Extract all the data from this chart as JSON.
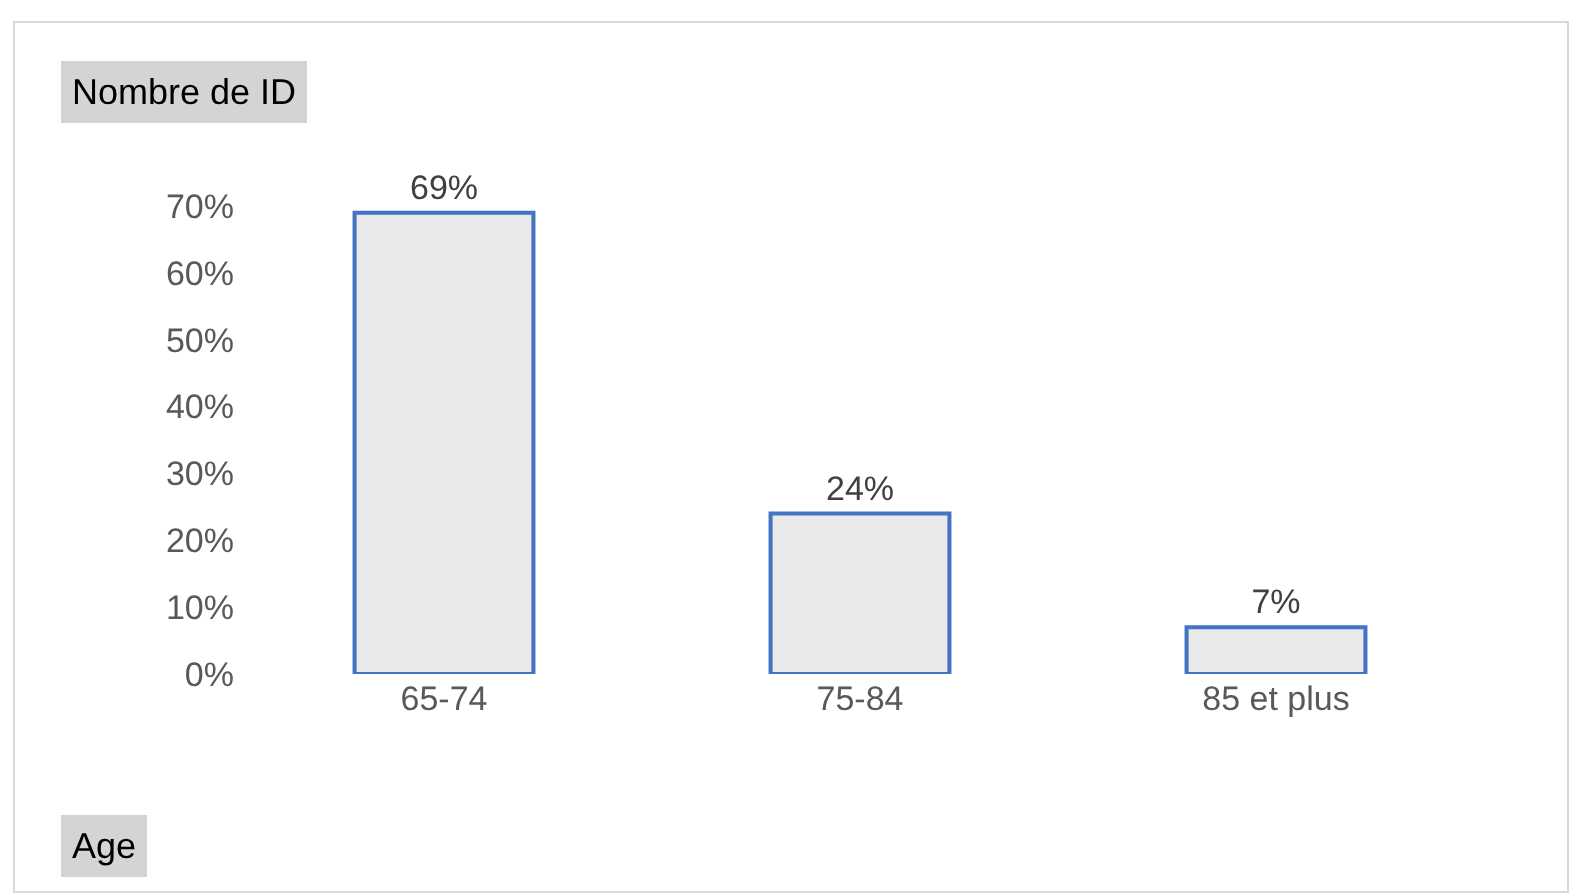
{
  "chart_data": {
    "type": "bar",
    "ylabel": "Nombre de ID",
    "xlabel": "Age",
    "categories": [
      "65-74",
      "75-84",
      "85 et plus"
    ],
    "values": [
      69,
      24,
      7
    ],
    "color": "#e9e9e9",
    "value_labels": [
      "69%",
      "24%",
      "7%"
    ],
    "ylim": [
      0,
      70
    ],
    "yticks": [
      {
        "value": 0,
        "label": "0%"
      },
      {
        "value": 10,
        "label": "10%"
      },
      {
        "value": 20,
        "label": "20%"
      },
      {
        "value": 30,
        "label": "30%"
      },
      {
        "value": 40,
        "label": "40%"
      },
      {
        "value": 50,
        "label": "50%"
      },
      {
        "value": 60,
        "label": "60%"
      },
      {
        "value": 70,
        "label": "70%"
      }
    ],
    "grid": false
  }
}
